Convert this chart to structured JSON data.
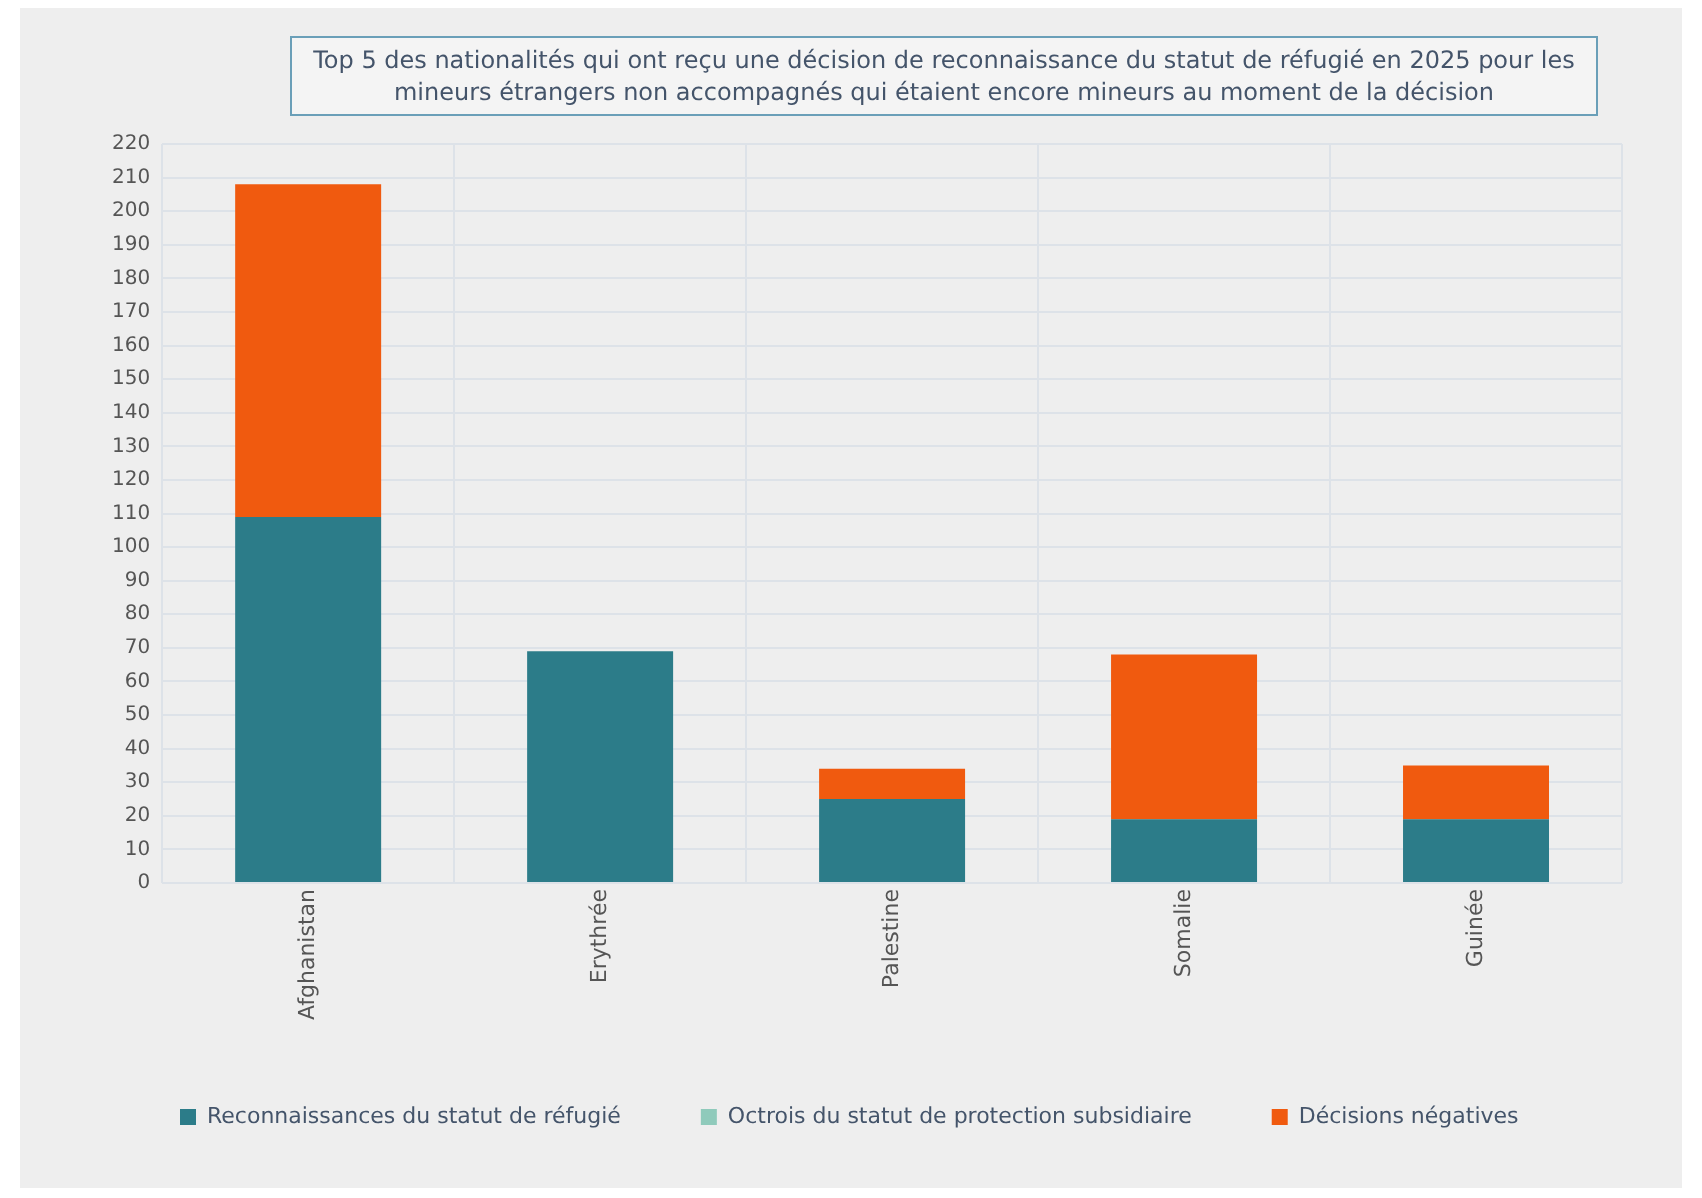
{
  "chart_data": {
    "type": "bar",
    "title": "Top 5 des nationalités qui ont reçu une décision de reconnaissance du statut de réfugié en 2025 pour les mineurs étrangers non accompagnés qui étaient encore mineurs au moment de la décision",
    "categories": [
      "Afghanistan",
      "Erythrée",
      "Palestine",
      "Somalie",
      "Guinée"
    ],
    "stacked": true,
    "series": [
      {
        "name": "Reconnaissances du statut de réfugié",
        "color": "#2c7c89",
        "values": [
          109,
          69,
          25,
          19,
          19
        ]
      },
      {
        "name": "Octrois du statut de protection subsidiaire",
        "color": "#8fcabb",
        "values": [
          0,
          0,
          0,
          0,
          0
        ]
      },
      {
        "name": "Décisions négatives",
        "color": "#f05a0f",
        "values": [
          99,
          0,
          9,
          49,
          16
        ]
      }
    ],
    "ylim": [
      0,
      220
    ],
    "yticks": [
      0,
      10,
      20,
      30,
      40,
      50,
      60,
      70,
      80,
      90,
      100,
      110,
      120,
      130,
      140,
      150,
      160,
      170,
      180,
      190,
      200,
      210,
      220
    ],
    "grid": true,
    "legend": "bottom"
  }
}
